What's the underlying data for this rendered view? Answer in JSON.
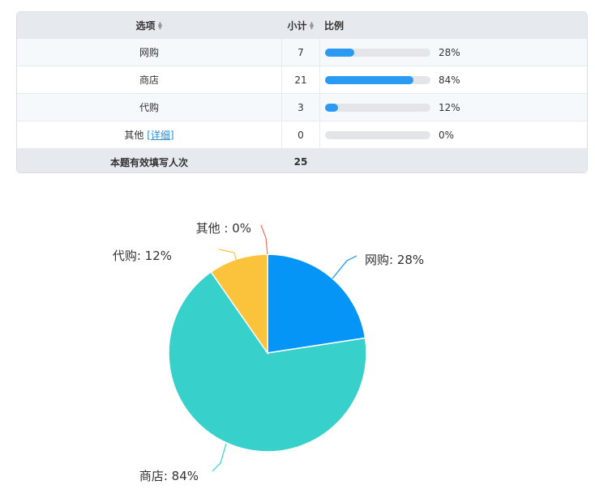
{
  "table": {
    "headers": {
      "option": "选项",
      "count": "小计",
      "ratio": "比例"
    },
    "rows": [
      {
        "label": "网购",
        "count": "7",
        "pct": "28%",
        "fraction": 0.28,
        "link": ""
      },
      {
        "label": "商店",
        "count": "21",
        "pct": "84%",
        "fraction": 0.84,
        "link": ""
      },
      {
        "label": "代购",
        "count": "3",
        "pct": "12%",
        "fraction": 0.12,
        "link": ""
      },
      {
        "label": "其他",
        "count": "0",
        "pct": "0%",
        "fraction": 0,
        "link": "[详细]"
      }
    ],
    "footer": {
      "label": "本题有效填写人次",
      "count": "25"
    }
  },
  "chart_data": {
    "type": "pie",
    "slices": [
      {
        "label": "网购: 28%",
        "value": 7,
        "color": "#0595f7"
      },
      {
        "label": "商店: 84%",
        "value": 21,
        "color": "#37d0cb"
      },
      {
        "label": "代购: 12%",
        "value": 3,
        "color": "#fbc33b"
      },
      {
        "label": "其他 : 0%",
        "value": 0,
        "color": "#f26f5a"
      }
    ]
  }
}
